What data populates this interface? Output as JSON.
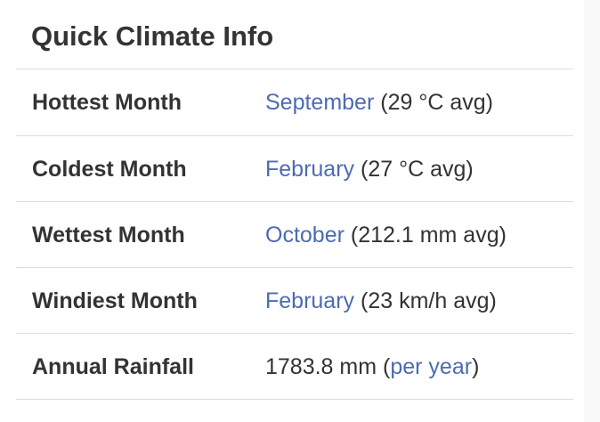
{
  "title": "Quick Climate Info",
  "rows": [
    {
      "label": "Hottest Month",
      "link": "September",
      "suffix": " (29 °C avg)"
    },
    {
      "label": "Coldest Month",
      "link": "February",
      "suffix": " (27 °C avg)"
    },
    {
      "label": "Wettest Month",
      "link": "October",
      "suffix": " (212.1 mm avg)"
    },
    {
      "label": "Windiest Month",
      "link": "February",
      "suffix": " (23 km/h avg)"
    }
  ],
  "rainfall": {
    "label": "Annual Rainfall",
    "prefix": "1783.8 mm (",
    "link": "per year",
    "suffix": ")"
  },
  "colors": {
    "link": "#4d6bb3",
    "text": "#333333",
    "divider": "#dddddd"
  }
}
